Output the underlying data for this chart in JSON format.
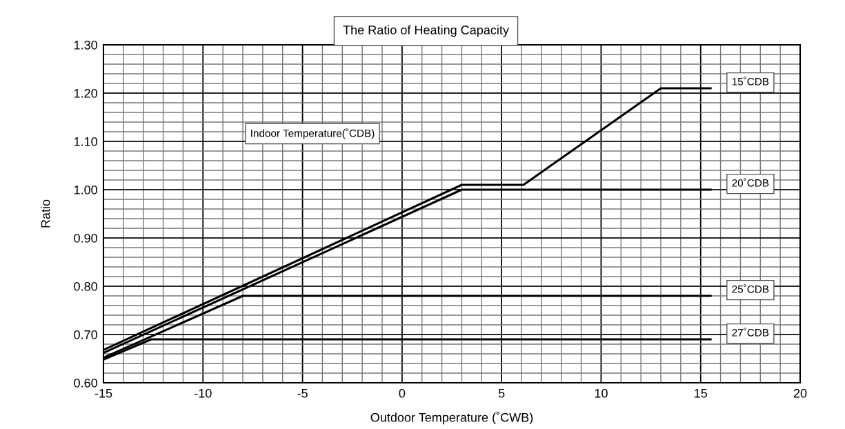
{
  "chart_data": {
    "type": "line",
    "title": "The Ratio of Heating Capacity",
    "xlabel": "Outdoor Temperature (˚CWB)",
    "ylabel": "Ratio",
    "annotations": [
      "Indoor Temperature(˚CDB)"
    ],
    "series": [
      {
        "name": "15˚CDB",
        "color": "#000000",
        "x": [
          -15,
          3,
          6.1,
          13,
          15.5
        ],
        "values": [
          0.668,
          1.01,
          1.01,
          1.21,
          1.21
        ]
      },
      {
        "name": "20˚CDB",
        "color": "#000000",
        "x": [
          -15,
          3,
          15.5
        ],
        "values": [
          0.662,
          1.0,
          1.0
        ]
      },
      {
        "name": "25˚CDB",
        "color": "#000000",
        "x": [
          -15,
          -8,
          15.5
        ],
        "values": [
          0.652,
          0.78,
          0.78
        ]
      },
      {
        "name": "27˚CDB",
        "color": "#000000",
        "x": [
          -15,
          -12.6,
          15.5
        ],
        "values": [
          0.648,
          0.69,
          0.69
        ]
      }
    ],
    "xlim": [
      -15,
      20
    ],
    "xticks": [
      -15,
      -10,
      -5,
      0,
      5,
      10,
      15,
      20
    ],
    "ylim": [
      0.6,
      1.3
    ],
    "yticks": [
      {
        "value": 0.6,
        "label": "0.60"
      },
      {
        "value": 0.7,
        "label": "0.70"
      },
      {
        "value": 0.8,
        "label": "0.80"
      },
      {
        "value": 0.9,
        "label": "0.90"
      },
      {
        "value": 1.0,
        "label": "1.00"
      },
      {
        "value": 1.1,
        "label": "1.10"
      },
      {
        "value": 1.2,
        "label": "1.20"
      },
      {
        "value": 1.3,
        "label": "1.30"
      }
    ],
    "grid": true,
    "legend": false,
    "marker": "none",
    "line_style": "solid"
  }
}
